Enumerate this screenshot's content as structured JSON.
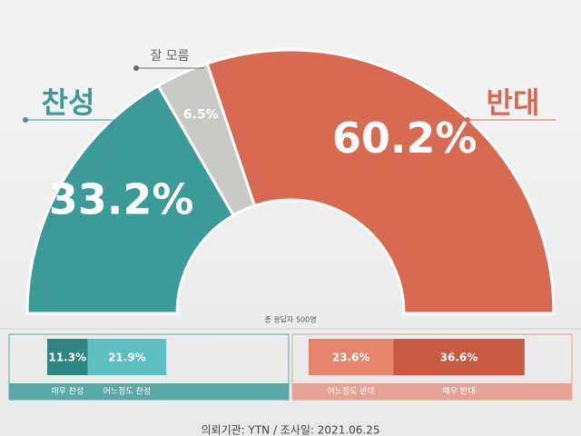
{
  "chart_data": [
    {
      "type": "half-donut",
      "categories": [
        "찬성",
        "잘 모름",
        "반대"
      ],
      "values": [
        33.2,
        6.5,
        60.2
      ],
      "value_labels": [
        "33.2%",
        "6.5%",
        "60.2%"
      ],
      "colors": [
        "#3a9b98",
        "#c9c9c7",
        "#d76a50"
      ],
      "note": "총 응답자 500명"
    },
    {
      "type": "stacked-bar",
      "series": [
        {
          "name": "매우 찬성",
          "color": "#2f8584",
          "values": [
            11.3
          ],
          "value_labels": [
            "11.3%"
          ]
        },
        {
          "name": "어느정도 찬성",
          "color": "#5cc0c2",
          "values": [
            21.9
          ],
          "value_labels": [
            "21.9%"
          ]
        }
      ],
      "color": "#5aa9a7"
    },
    {
      "type": "stacked-bar",
      "series": [
        {
          "name": "어느정도 반대",
          "color": "#e4856c",
          "values": [
            23.6
          ],
          "value_labels": [
            "23.6%"
          ]
        },
        {
          "name": "매우 반대",
          "color": "#c85a41",
          "values": [
            36.6
          ],
          "value_labels": [
            "36.6%"
          ]
        }
      ],
      "color": "#e6a395"
    }
  ],
  "source": "의뢰기관: YTN  /  조사일: 2021.06.25"
}
